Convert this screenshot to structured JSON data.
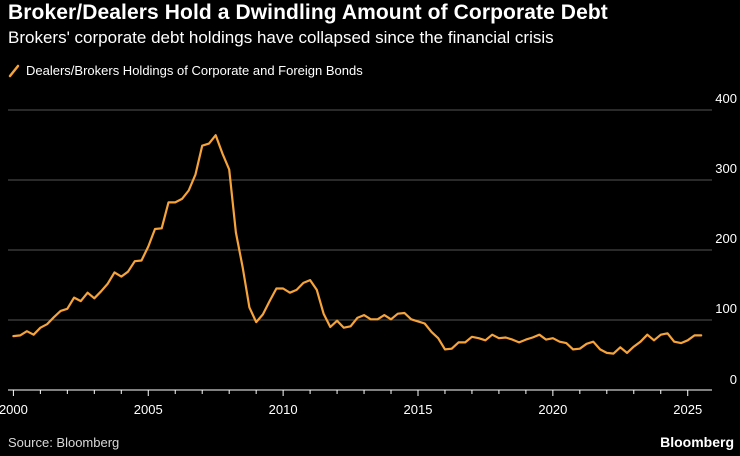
{
  "title": "Broker/Dealers Hold a Dwindling Amount of Corporate Debt",
  "subtitle": "Brokers' corporate debt holdings have collapsed since the financial crisis",
  "source": "Source: Bloomberg",
  "logo": "Bloomberg",
  "colors": {
    "background": "#000000",
    "line": "#f5a33a",
    "grid": "#555555",
    "axis": "#ffffff"
  },
  "chart_data": {
    "type": "line",
    "title": "Broker/Dealers Hold a Dwindling Amount of Corporate Debt",
    "xlabel": "",
    "ylabel": "",
    "xlim": [
      1999.8,
      2025.9
    ],
    "ylim": [
      0,
      400
    ],
    "y_ticks": [
      0,
      100,
      200,
      300,
      400
    ],
    "x_ticks": [
      2000,
      2005,
      2010,
      2015,
      2020,
      2025
    ],
    "legend_position": "top-left",
    "series": [
      {
        "name": "Dealers/Brokers Holdings of Corporate and Foreign Bonds",
        "x": [
          2000.0,
          2000.25,
          2000.5,
          2000.75,
          2001.0,
          2001.25,
          2001.5,
          2001.75,
          2002.0,
          2002.25,
          2002.5,
          2002.75,
          2003.0,
          2003.25,
          2003.5,
          2003.75,
          2004.0,
          2004.25,
          2004.5,
          2004.75,
          2005.0,
          2005.25,
          2005.5,
          2005.75,
          2006.0,
          2006.25,
          2006.5,
          2006.75,
          2007.0,
          2007.25,
          2007.5,
          2007.75,
          2008.0,
          2008.25,
          2008.5,
          2008.75,
          2009.0,
          2009.25,
          2009.5,
          2009.75,
          2010.0,
          2010.25,
          2010.5,
          2010.75,
          2011.0,
          2011.25,
          2011.5,
          2011.75,
          2012.0,
          2012.25,
          2012.5,
          2012.75,
          2013.0,
          2013.25,
          2013.5,
          2013.75,
          2014.0,
          2014.25,
          2014.5,
          2014.75,
          2015.0,
          2015.25,
          2015.5,
          2015.75,
          2016.0,
          2016.25,
          2016.5,
          2016.75,
          2017.0,
          2017.25,
          2017.5,
          2017.75,
          2018.0,
          2018.25,
          2018.5,
          2018.75,
          2019.0,
          2019.25,
          2019.5,
          2019.75,
          2020.0,
          2020.25,
          2020.5,
          2020.75,
          2021.0,
          2021.25,
          2021.5,
          2021.75,
          2022.0,
          2022.25,
          2022.5,
          2022.75,
          2023.0,
          2023.25,
          2023.5,
          2023.75,
          2024.0,
          2024.25,
          2024.5,
          2024.75,
          2025.0,
          2025.25,
          2025.5
        ],
        "values": [
          77,
          78,
          84,
          79,
          89,
          94,
          104,
          113,
          116,
          132,
          127,
          139,
          131,
          141,
          152,
          168,
          162,
          169,
          184,
          185,
          205,
          230,
          231,
          268,
          268,
          273,
          285,
          308,
          349,
          352,
          364,
          338,
          315,
          225,
          175,
          118,
          97,
          108,
          127,
          145,
          145,
          139,
          143,
          153,
          157,
          143,
          109,
          90,
          99,
          89,
          91,
          103,
          107,
          101,
          101,
          107,
          101,
          109,
          110,
          101,
          98,
          95,
          83,
          74,
          58,
          59,
          68,
          68,
          76,
          74,
          71,
          79,
          74,
          75,
          72,
          68,
          72,
          75,
          79,
          72,
          74,
          69,
          67,
          58,
          59,
          66,
          69,
          58,
          53,
          52,
          61,
          53,
          62,
          69,
          79,
          71,
          79,
          81,
          69,
          67,
          71,
          78,
          78
        ]
      }
    ]
  }
}
